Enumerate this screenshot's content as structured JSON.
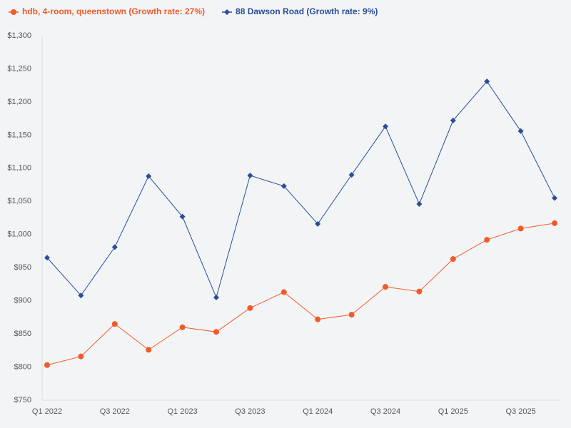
{
  "chart_data": {
    "type": "line",
    "categories": [
      "Q1 2022",
      null,
      "Q3 2022",
      null,
      "Q1 2023",
      null,
      "Q3 2023",
      null,
      "Q1 2024",
      null,
      "Q3 2024",
      null,
      "Q1 2025",
      null,
      "Q3 2025",
      null
    ],
    "series": [
      {
        "name": "hdb, 4-room, queenstown (Growth rate: 27%)",
        "color": "#f15a29",
        "marker": "circle",
        "values": [
          803,
          816,
          865,
          826,
          860,
          853,
          889,
          913,
          872,
          879,
          921,
          914,
          963,
          992,
          1009,
          1017
        ]
      },
      {
        "name": "88 Dawson Road (Growth rate: 9%)",
        "color": "#2a4d9b",
        "marker": "diamond",
        "values": [
          965,
          908,
          981,
          1088,
          1027,
          905,
          1089,
          1073,
          1016,
          1090,
          1163,
          1046,
          1172,
          1231,
          1156,
          1055
        ]
      }
    ],
    "ylim": [
      750,
      1300
    ],
    "yticks": [
      {
        "value": 750,
        "label": "$750"
      },
      {
        "value": 800,
        "label": "$800"
      },
      {
        "value": 850,
        "label": "$850"
      },
      {
        "value": 900,
        "label": "$900"
      },
      {
        "value": 950,
        "label": "$950"
      },
      {
        "value": 1000,
        "label": "$1,000"
      },
      {
        "value": 1050,
        "label": "$1,050"
      },
      {
        "value": 1100,
        "label": "$1,100"
      },
      {
        "value": 1150,
        "label": "$1,150"
      },
      {
        "value": 1200,
        "label": "$1,200"
      },
      {
        "value": 1250,
        "label": "$1,250"
      },
      {
        "value": 1300,
        "label": "$1,300"
      }
    ],
    "grid": false,
    "legend": "top-left"
  }
}
